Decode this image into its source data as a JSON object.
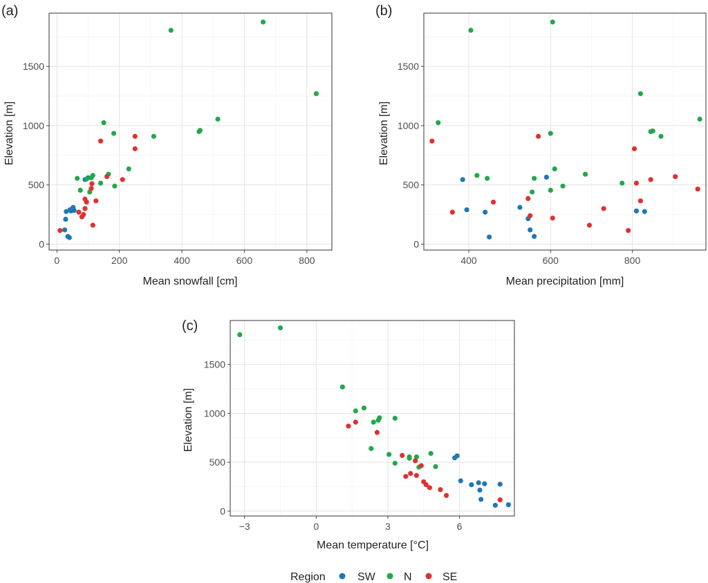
{
  "colors": {
    "SW": "#1f77b4",
    "N": "#22a84a",
    "SE": "#e03030"
  },
  "legend": {
    "title": "Region",
    "entries": [
      "SW",
      "N",
      "SE"
    ]
  },
  "chart_data": [
    {
      "panel": "(a)",
      "type": "scatter",
      "xlabel": "Mean snowfall [cm]",
      "ylabel": "Elevation [m]",
      "xlim": [
        -25,
        880
      ],
      "ylim": [
        -50,
        1950
      ],
      "xticks": [
        0,
        200,
        400,
        600,
        800
      ],
      "yticks": [
        0,
        500,
        1000,
        1500
      ],
      "xtick_labels": [
        "0",
        "200",
        "400",
        "600",
        "800"
      ],
      "ytick_labels": [
        "0",
        "500",
        "1000",
        "1500"
      ],
      "grid": true,
      "series": [
        {
          "name": "SW",
          "points": [
            [
              25,
              120
            ],
            [
              28,
              210
            ],
            [
              30,
              275
            ],
            [
              35,
              65
            ],
            [
              40,
              55
            ],
            [
              42,
              290
            ],
            [
              45,
              280
            ],
            [
              50,
              300
            ],
            [
              52,
              310
            ],
            [
              55,
              285
            ],
            [
              90,
              545
            ],
            [
              100,
              560
            ]
          ]
        },
        {
          "name": "N",
          "points": [
            [
              65,
              555
            ],
            [
              75,
              455
            ],
            [
              95,
              550
            ],
            [
              105,
              440
            ],
            [
              110,
              560
            ],
            [
              115,
              580
            ],
            [
              140,
              515
            ],
            [
              150,
              1025
            ],
            [
              165,
              590
            ],
            [
              182,
              935
            ],
            [
              185,
              490
            ],
            [
              230,
              635
            ],
            [
              310,
              910
            ],
            [
              365,
              1805
            ],
            [
              455,
              950
            ],
            [
              458,
              960
            ],
            [
              515,
              1055
            ],
            [
              660,
              1875
            ],
            [
              830,
              1270
            ]
          ]
        },
        {
          "name": "SE",
          "points": [
            [
              10,
              115
            ],
            [
              70,
              270
            ],
            [
              80,
              230
            ],
            [
              85,
              250
            ],
            [
              90,
              300
            ],
            [
              90,
              380
            ],
            [
              95,
              355
            ],
            [
              110,
              470
            ],
            [
              112,
              510
            ],
            [
              115,
              160
            ],
            [
              125,
              365
            ],
            [
              140,
              870
            ],
            [
              210,
              545
            ],
            [
              250,
              910
            ],
            [
              250,
              805
            ],
            [
              160,
              570
            ]
          ]
        }
      ]
    },
    {
      "panel": "(b)",
      "type": "scatter",
      "xlabel": "Mean precipitation [mm]",
      "ylabel": "Elevation [m]",
      "xlim": [
        290,
        980
      ],
      "ylim": [
        -50,
        1950
      ],
      "xticks": [
        400,
        600,
        800
      ],
      "yticks": [
        0,
        500,
        1000,
        1500
      ],
      "xtick_labels": [
        "400",
        "600",
        "800"
      ],
      "ytick_labels": [
        "0",
        "500",
        "1000",
        "1500"
      ],
      "grid": true,
      "series": [
        {
          "name": "SW",
          "points": [
            [
              385,
              545
            ],
            [
              395,
              290
            ],
            [
              440,
              270
            ],
            [
              450,
              60
            ],
            [
              525,
              310
            ],
            [
              545,
              215
            ],
            [
              550,
              120
            ],
            [
              560,
              65
            ],
            [
              590,
              565
            ],
            [
              810,
              280
            ],
            [
              830,
              275
            ]
          ]
        },
        {
          "name": "N",
          "points": [
            [
              325,
              1025
            ],
            [
              405,
              1805
            ],
            [
              420,
              580
            ],
            [
              445,
              555
            ],
            [
              555,
              440
            ],
            [
              560,
              555
            ],
            [
              600,
              935
            ],
            [
              600,
              455
            ],
            [
              605,
              1875
            ],
            [
              610,
              635
            ],
            [
              630,
              490
            ],
            [
              685,
              590
            ],
            [
              775,
              515
            ],
            [
              820,
              1270
            ],
            [
              845,
              950
            ],
            [
              850,
              955
            ],
            [
              870,
              910
            ],
            [
              965,
              1055
            ]
          ]
        },
        {
          "name": "SE",
          "points": [
            [
              310,
              870
            ],
            [
              360,
              270
            ],
            [
              460,
              355
            ],
            [
              545,
              385
            ],
            [
              550,
              240
            ],
            [
              570,
              910
            ],
            [
              605,
              220
            ],
            [
              695,
              160
            ],
            [
              730,
              300
            ],
            [
              790,
              115
            ],
            [
              805,
              805
            ],
            [
              810,
              515
            ],
            [
              820,
              365
            ],
            [
              845,
              545
            ],
            [
              905,
              570
            ],
            [
              960,
              465
            ]
          ]
        }
      ]
    },
    {
      "panel": "(c)",
      "type": "scatter",
      "xlabel": "Mean temperature [°C]",
      "ylabel": "Elevation [m]",
      "xlim": [
        -3.6,
        8.3
      ],
      "ylim": [
        -50,
        1950
      ],
      "xticks": [
        -3,
        0,
        3,
        6
      ],
      "yticks": [
        0,
        500,
        1000,
        1500
      ],
      "xtick_labels": [
        "−3",
        "0",
        "3",
        "6"
      ],
      "ytick_labels": [
        "0",
        "500",
        "1000",
        "1500"
      ],
      "grid": true,
      "series": [
        {
          "name": "SW",
          "points": [
            [
              5.8,
              545
            ],
            [
              5.9,
              565
            ],
            [
              6.05,
              310
            ],
            [
              6.5,
              270
            ],
            [
              6.8,
              290
            ],
            [
              6.85,
              215
            ],
            [
              6.9,
              120
            ],
            [
              7.05,
              280
            ],
            [
              7.5,
              60
            ],
            [
              7.7,
              275
            ],
            [
              8.05,
              65
            ]
          ]
        },
        {
          "name": "N",
          "points": [
            [
              -3.2,
              1805
            ],
            [
              -1.5,
              1875
            ],
            [
              1.1,
              1270
            ],
            [
              1.65,
              1025
            ],
            [
              2.0,
              1055
            ],
            [
              2.3,
              640
            ],
            [
              2.4,
              910
            ],
            [
              2.6,
              930
            ],
            [
              2.65,
              955
            ],
            [
              3.05,
              580
            ],
            [
              3.3,
              490
            ],
            [
              3.3,
              950
            ],
            [
              3.9,
              540
            ],
            [
              3.9,
              555
            ],
            [
              4.2,
              555
            ],
            [
              4.3,
              450
            ],
            [
              4.8,
              590
            ],
            [
              5.0,
              455
            ]
          ]
        },
        {
          "name": "SE",
          "points": [
            [
              1.35,
              870
            ],
            [
              1.65,
              910
            ],
            [
              2.55,
              805
            ],
            [
              3.6,
              570
            ],
            [
              3.75,
              355
            ],
            [
              3.95,
              385
            ],
            [
              4.15,
              515
            ],
            [
              4.2,
              365
            ],
            [
              4.4,
              465
            ],
            [
              4.5,
              300
            ],
            [
              4.6,
              270
            ],
            [
              4.75,
              240
            ],
            [
              5.2,
              220
            ],
            [
              5.45,
              160
            ],
            [
              7.7,
              115
            ]
          ]
        }
      ]
    }
  ]
}
